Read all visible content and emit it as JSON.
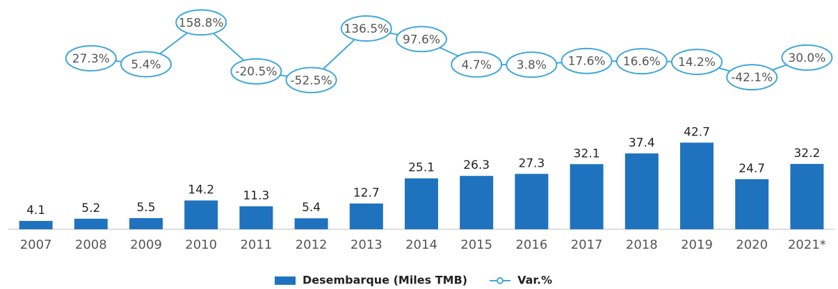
{
  "chart_data": {
    "type": "combo",
    "categories": [
      "2007",
      "2008",
      "2009",
      "2010",
      "2011",
      "2012",
      "2013",
      "2014",
      "2015",
      "2016",
      "2017",
      "2018",
      "2019",
      "2020",
      "2021*"
    ],
    "series": [
      {
        "name": "Desembarque (Miles TMB)",
        "type": "bar",
        "color": "#1f73be",
        "values": [
          4.1,
          5.2,
          5.5,
          14.2,
          11.3,
          5.4,
          12.7,
          25.1,
          26.3,
          27.3,
          32.1,
          37.4,
          42.7,
          24.7,
          32.2
        ]
      },
      {
        "name": "Var.%",
        "type": "line",
        "axis": "y2",
        "color": "#3fa6da",
        "values": [
          null,
          27.3,
          5.4,
          158.8,
          -20.5,
          -52.5,
          136.5,
          97.6,
          4.7,
          3.8,
          17.6,
          16.6,
          14.2,
          -42.1,
          30.0
        ],
        "value_labels": [
          null,
          "27.3%",
          "5.4%",
          "158.8%",
          "-20.5%",
          "-52.5%",
          "136.5%",
          "97.6%",
          "4.7%",
          "3.8%",
          "17.6%",
          "16.6%",
          "14.2%",
          "-42.1%",
          "30.0%"
        ]
      }
    ],
    "ylim": [
      0,
      50
    ],
    "y2lim": [
      -90,
      190
    ],
    "legend": "bottom"
  }
}
